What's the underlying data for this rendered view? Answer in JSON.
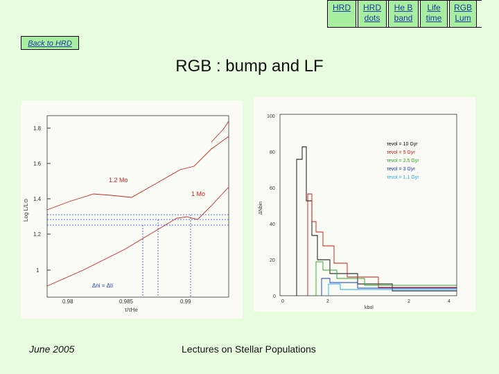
{
  "nav": [
    {
      "label": "HRD"
    },
    {
      "label": "HRD dots"
    },
    {
      "label": "He B band"
    },
    {
      "label": "Life time"
    },
    {
      "label": "RGB Lum"
    }
  ],
  "back_link": "Back to HRD",
  "title": "RGB : bump and LF",
  "footer": {
    "date": "June 2005",
    "center": "Lectures on Stellar Populations"
  },
  "colors": {
    "background": "#e8fde0",
    "nav": "#a8eea0",
    "link": "#1a3aa0"
  },
  "chart_data": [
    {
      "type": "line",
      "ylabel": "Log L/L⊙",
      "xlabel": "τ/τHe",
      "x_ticks": [
        "0.98",
        "0.985",
        "0.99"
      ],
      "y_ticks": [
        "1",
        "1.2",
        "1.4",
        "1.6",
        "1.8"
      ],
      "annotations": [
        "1.2 Mo",
        "1 Mo",
        "Δni = Δti"
      ]
    },
    {
      "type": "line",
      "ylabel": "ΔNbin",
      "xlabel": "kbol",
      "x_ticks": [
        "0",
        "2",
        "2",
        "4"
      ],
      "y_ticks": [
        "0",
        "20",
        "40",
        "60",
        "80",
        "100"
      ],
      "legend": [
        {
          "label": "τevol = 10 Gyr",
          "color": "#000000"
        },
        {
          "label": "τevol = 5 Gyr",
          "color": "#cc1111"
        },
        {
          "label": "τevol = 2.5 Gyr",
          "color": "#22aa22"
        },
        {
          "label": "τevol = 3 Gyr",
          "color": "#1133cc"
        },
        {
          "label": "τevol = 1.1 Gyr",
          "color": "#22aaee"
        }
      ]
    }
  ]
}
